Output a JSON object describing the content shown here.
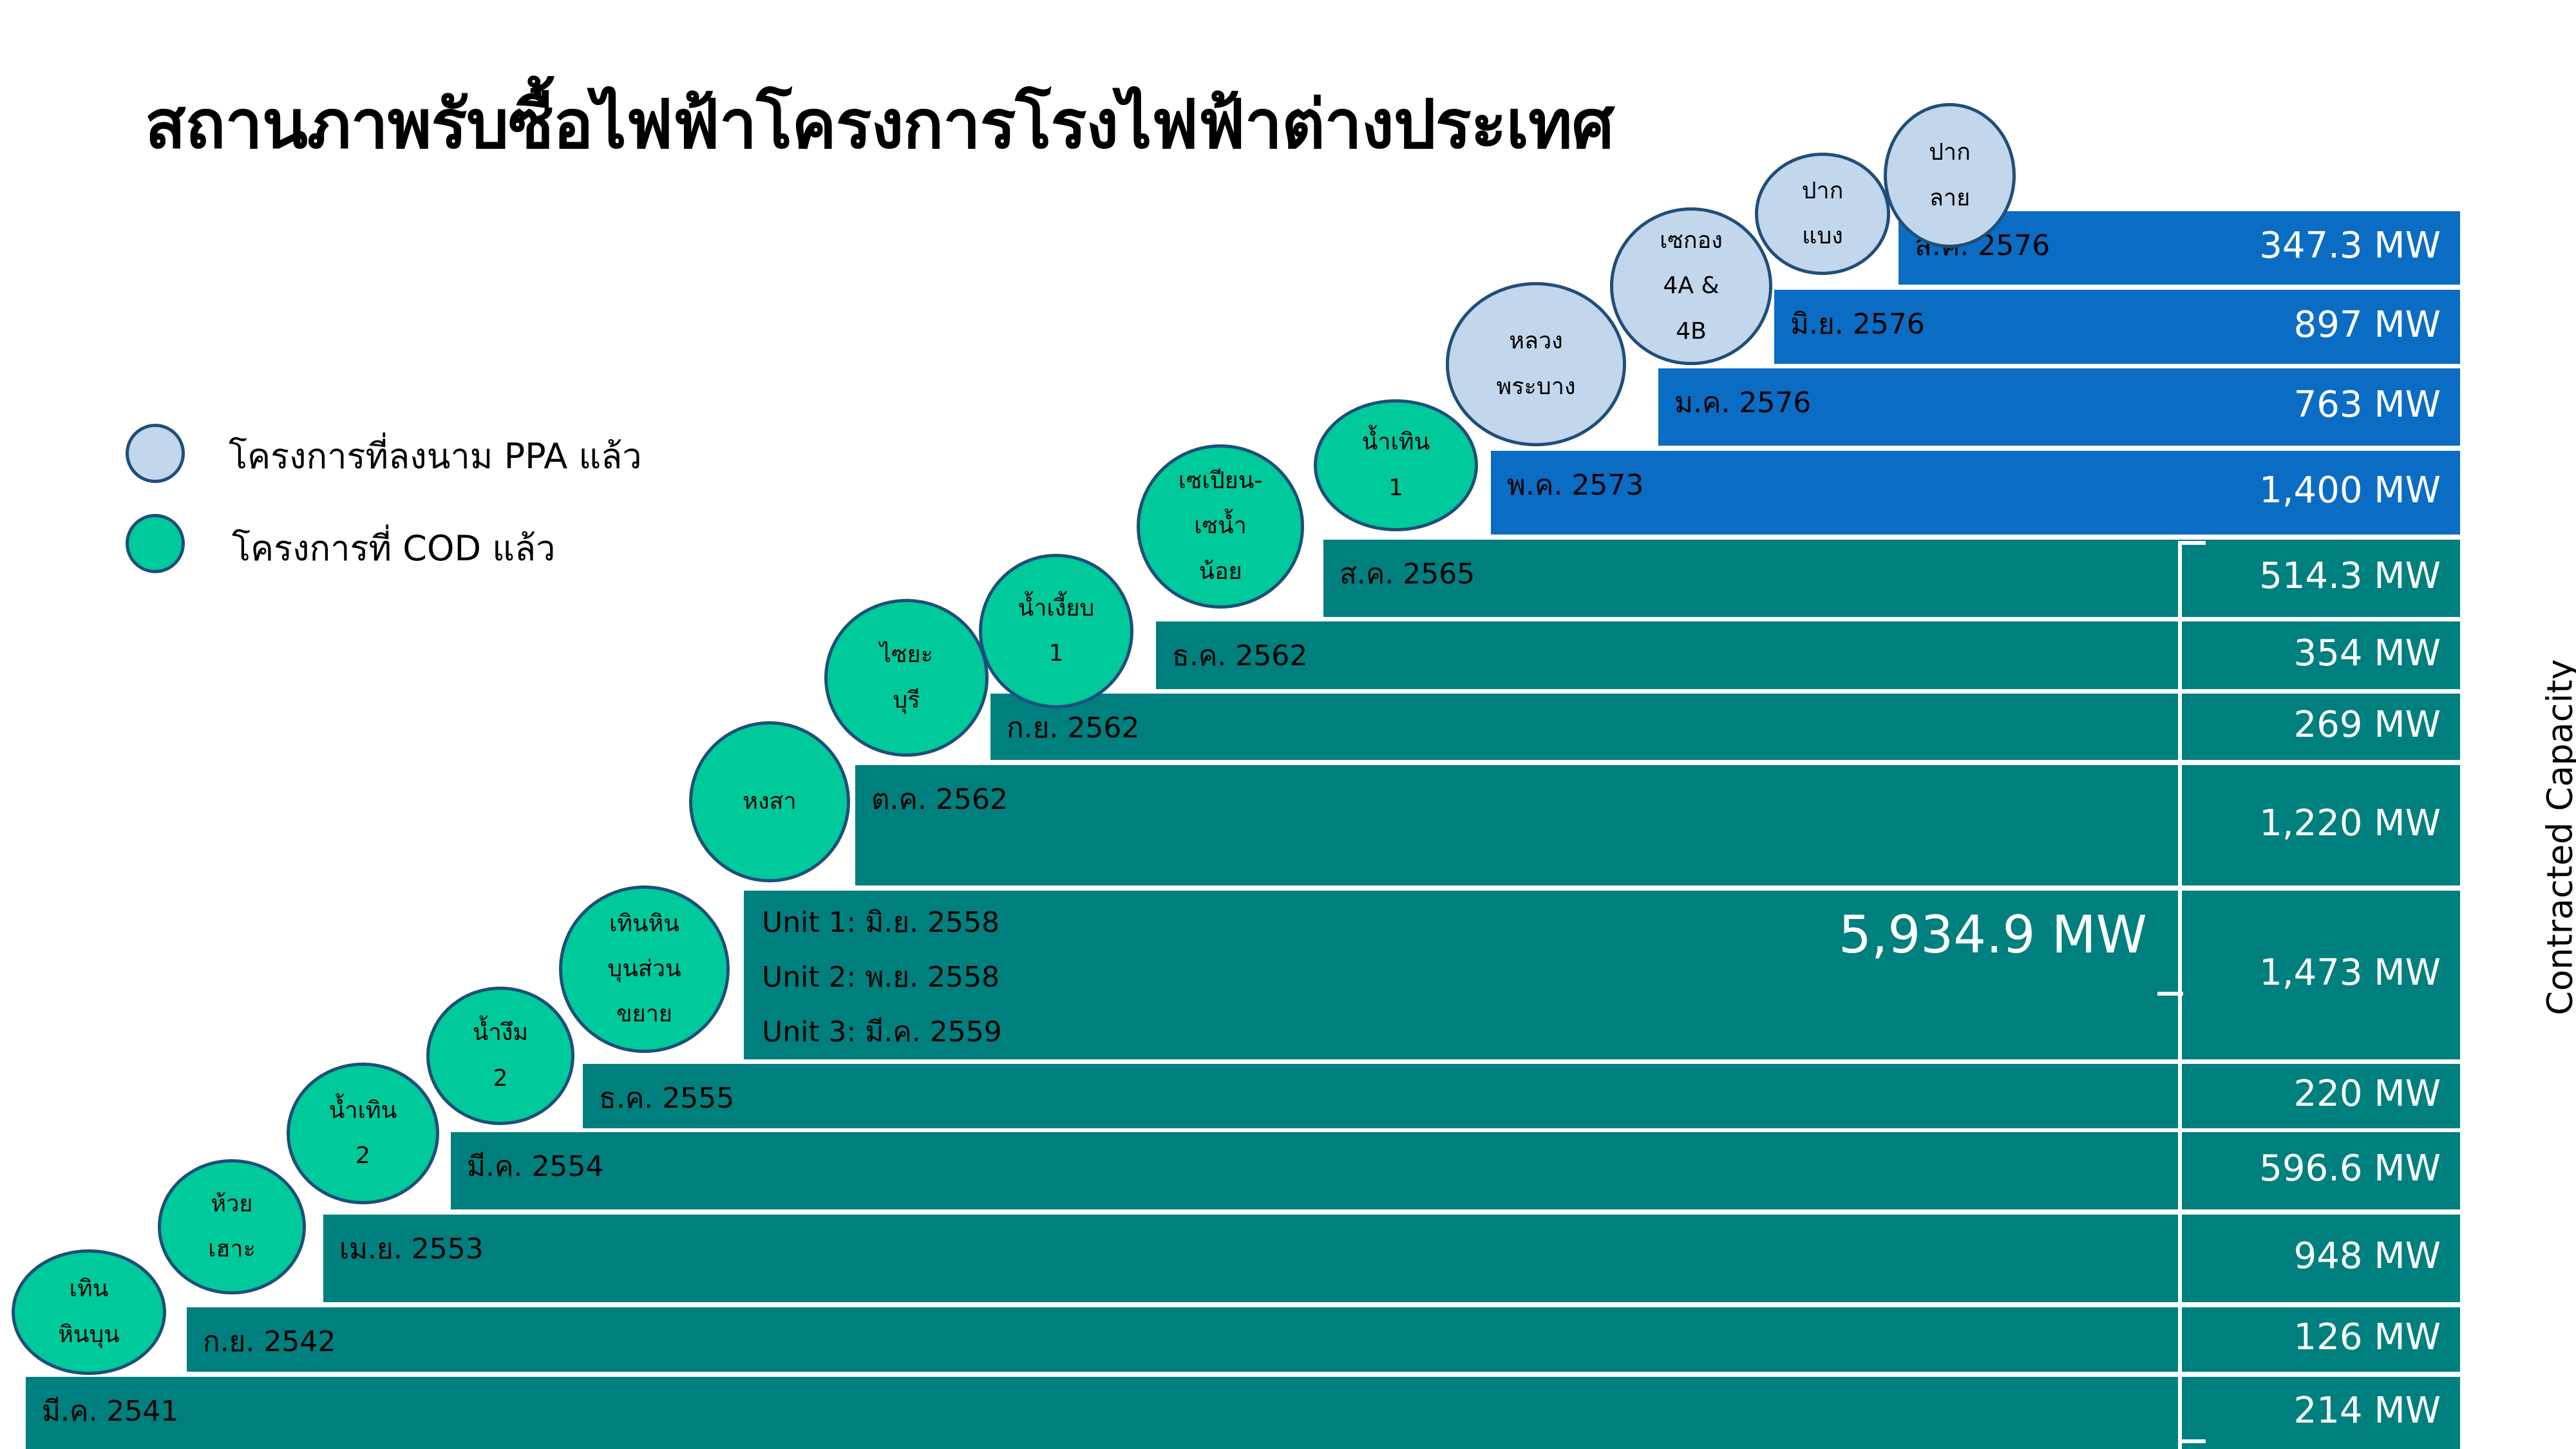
{
  "title": "สถานภาพรับซื้อไฟฟ้าโครงการโรงไฟฟ้าต่างประเทศ",
  "legend": {
    "ppa_label": "โครงการที่ลงนาม PPA แล้ว",
    "cod_label": "โครงการที่ COD แล้ว"
  },
  "colors": {
    "cod_bar": "#007f7f",
    "ppa_bar": "#0b6cc4",
    "cod_circle": "#00c99c",
    "ppa_circle": "#c2d6ec"
  },
  "total_label": "5,934.9 MW",
  "side_label": "Contracted Capacity",
  "chart_data": {
    "type": "bar",
    "orientation": "horizontal-staircase",
    "series": [
      {
        "project": "ปาก\nลาย",
        "date": "ส.ค. 2576",
        "value_label": "347.3 MW",
        "value": 347.3,
        "status": "ppa"
      },
      {
        "project": "ปาก\nแบง",
        "date": "มิ.ย. 2576",
        "value_label": "897 MW",
        "value": 897,
        "status": "ppa"
      },
      {
        "project": "เซกอง\n4A &\n4B",
        "date": "ม.ค. 2576",
        "value_label": "763 MW",
        "value": 763,
        "status": "ppa"
      },
      {
        "project": "หลวง\nพระบาง",
        "date": "พ.ค. 2573",
        "value_label": "1,400 MW",
        "value": 1400,
        "status": "ppa"
      },
      {
        "project": "น้ำเทิน\n1",
        "date": "ส.ค. 2565",
        "value_label": "514.3 MW",
        "value": 514.3,
        "status": "cod"
      },
      {
        "project": "เซเปียน-\nเซน้ำ\nน้อย",
        "date": "ธ.ค. 2562",
        "value_label": "354 MW",
        "value": 354,
        "status": "cod"
      },
      {
        "project": "น้ำเงี้ยบ\n1",
        "date": "ก.ย. 2562",
        "value_label": "269 MW",
        "value": 269,
        "status": "cod"
      },
      {
        "project": "ไซยะ\nบุรี",
        "date": "ต.ค. 2562",
        "value_label": "1,220 MW",
        "value": 1220,
        "status": "cod"
      },
      {
        "project": "หงสา",
        "date": "",
        "units": [
          "Unit 1: มิ.ย. 2558",
          "Unit 2: พ.ย. 2558",
          "Unit 3: มี.ค. 2559"
        ],
        "value_label": "1,473 MW",
        "value": 1473,
        "status": "cod"
      },
      {
        "project": "เทินหิน\nบุนส่วน\nขยาย",
        "date": "ธ.ค. 2555",
        "value_label": "220 MW",
        "value": 220,
        "status": "cod"
      },
      {
        "project": "น้ำงึม\n2",
        "date": "มี.ค. 2554",
        "value_label": "596.6 MW",
        "value": 596.6,
        "status": "cod"
      },
      {
        "project": "น้ำเทิน\n2",
        "date": "เม.ย. 2553",
        "value_label": "948 MW",
        "value": 948,
        "status": "cod"
      },
      {
        "project": "ห้วย\nเฮาะ",
        "date": "ก.ย. 2542",
        "value_label": "126 MW",
        "value": 126,
        "status": "cod"
      },
      {
        "project": "เทิน\nหินบุน",
        "date": "มี.ค. 2541",
        "value_label": "214 MW",
        "value": 214,
        "status": "cod"
      }
    ]
  }
}
